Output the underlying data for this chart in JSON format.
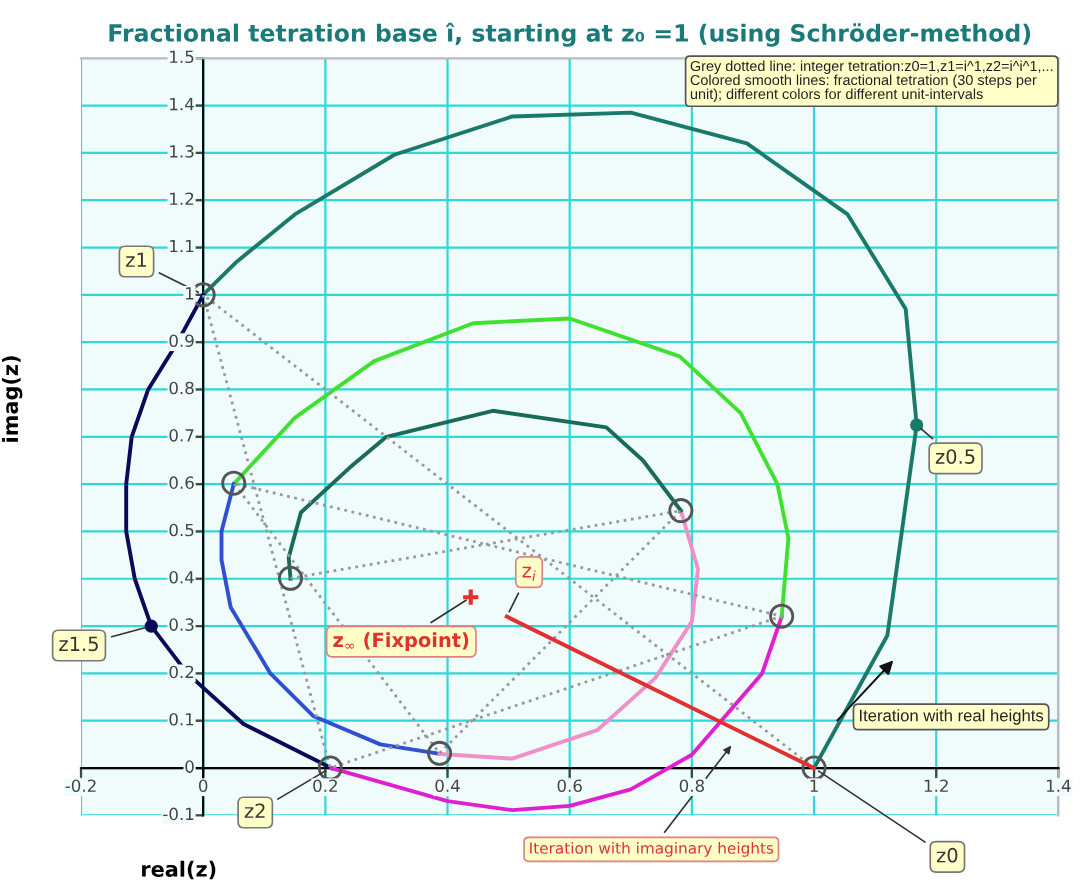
{
  "chart_data": {
    "type": "line",
    "title": "Fractional tetration base î, starting at z₀ =1 (using Schröder-method)",
    "xlabel": "real(z)",
    "ylabel": "imag(z)",
    "xlim": [
      -0.2,
      1.4
    ],
    "xticks": [
      -0.2,
      0,
      0.2,
      0.4,
      0.6,
      0.8,
      1,
      1.2,
      1.4
    ],
    "ylim": [
      -0.1,
      1.5
    ],
    "yticks": [
      -0.1,
      0,
      0.1,
      0.2,
      0.3,
      0.4,
      0.5,
      0.6,
      0.7,
      0.8,
      0.9,
      1,
      1.1,
      1.2,
      1.3,
      1.4,
      1.5
    ],
    "grid": true,
    "legend": false,
    "series": [
      {
        "color": "#1a7a6a",
        "x": [
          1,
          1.12,
          1.168,
          1.15,
          1.055,
          0.89,
          0.7,
          0.506,
          0.313,
          0.15,
          0.055,
          0
        ],
        "values": [
          0,
          0.28,
          0.725,
          0.97,
          1.17,
          1.32,
          1.385,
          1.377,
          1.296,
          1.17,
          1.07,
          1
        ]
      },
      {
        "color": "#0a0a5a",
        "x": [
          0,
          -0.042,
          -0.09,
          -0.117,
          -0.126,
          -0.126,
          -0.112,
          -0.085,
          -0.026,
          0.066,
          0.21
        ],
        "values": [
          1,
          0.9,
          0.8,
          0.7,
          0.6,
          0.5,
          0.4,
          0.3,
          0.2,
          0.093,
          0
        ]
      },
      {
        "color": "#e020d0",
        "x": [
          0.21,
          0.4,
          0.506,
          0.6,
          0.7,
          0.8,
          0.915,
          0.947
        ],
        "values": [
          0,
          -0.07,
          -0.089,
          -0.08,
          -0.045,
          0.028,
          0.2,
          0.32
        ]
      },
      {
        "color": "#40e030",
        "x": [
          0.947,
          0.958,
          0.94,
          0.88,
          0.78,
          0.6,
          0.442,
          0.28,
          0.15,
          0.05
        ],
        "values": [
          0.32,
          0.486,
          0.6,
          0.75,
          0.87,
          0.95,
          0.94,
          0.86,
          0.74,
          0.6
        ]
      },
      {
        "color": "#3050d0",
        "x": [
          0.05,
          0.03,
          0.03,
          0.045,
          0.11,
          0.18,
          0.29,
          0.387
        ],
        "values": [
          0.6,
          0.5,
          0.44,
          0.34,
          0.2,
          0.11,
          0.05,
          0.03
        ]
      },
      {
        "color": "#f090c8",
        "x": [
          0.387,
          0.506,
          0.645,
          0.74,
          0.8,
          0.81,
          0.782
        ],
        "values": [
          0.03,
          0.02,
          0.08,
          0.19,
          0.31,
          0.42,
          0.544
        ]
      },
      {
        "color": "#1a6a5a",
        "x": [
          0.782,
          0.72,
          0.66,
          0.474,
          0.3,
          0.24,
          0.16,
          0.14,
          0.143
        ],
        "values": [
          0.544,
          0.65,
          0.72,
          0.755,
          0.7,
          0.635,
          0.54,
          0.445,
          0.4
        ]
      },
      {
        "color": "#999999",
        "line_style": "dotted",
        "marker": "circle",
        "x": [
          1,
          0,
          0.208,
          0.947,
          0.05,
          0.387,
          0.782,
          0.143
        ],
        "values": [
          0,
          1,
          0,
          0.321,
          0.602,
          0.031,
          0.544,
          0.401
        ]
      },
      {
        "color": "#e03030",
        "x": [
          0.497,
          1
        ],
        "values": [
          0.32,
          0
        ]
      },
      {
        "type": "scatter",
        "marker": "cross",
        "color": "#e03030",
        "x": [
          0.438
        ],
        "values": [
          0.361
        ]
      },
      {
        "type": "scatter",
        "marker": "circle",
        "colors": [
          "#0a0a5a",
          "#1a7a6a"
        ],
        "x": [
          -0.085,
          1.168
        ],
        "values": [
          0.3,
          0.725
        ]
      }
    ],
    "annotations": [
      {
        "text": "z0",
        "x": 1,
        "y": 0
      },
      {
        "text": "z1",
        "x": 0,
        "y": 1
      },
      {
        "text": "z2",
        "x": 0.208,
        "y": 0
      },
      {
        "text": "z1.5",
        "x": -0.085,
        "y": 0.3
      },
      {
        "text": "z0.5",
        "x": 1.168,
        "y": 0.725
      },
      {
        "text": "z$_{∞}$ (Fixpoint)",
        "x": 0.438,
        "y": 0.361
      },
      {
        "text": "z$_{i}$",
        "x": 0.497,
        "y": 0.32
      },
      {
        "text": "Iteration with imaginary heights",
        "x": 0.87,
        "y": 0.057
      },
      "Iteration with real heights",
      "Grey dotted line: integer tetration:z0=1,z1=i^1,z2=i^i^1,...\nColored smooth lines: fractional tetration (30 steps per\nunit); different colors for different unit-intervals"
    ]
  }
}
